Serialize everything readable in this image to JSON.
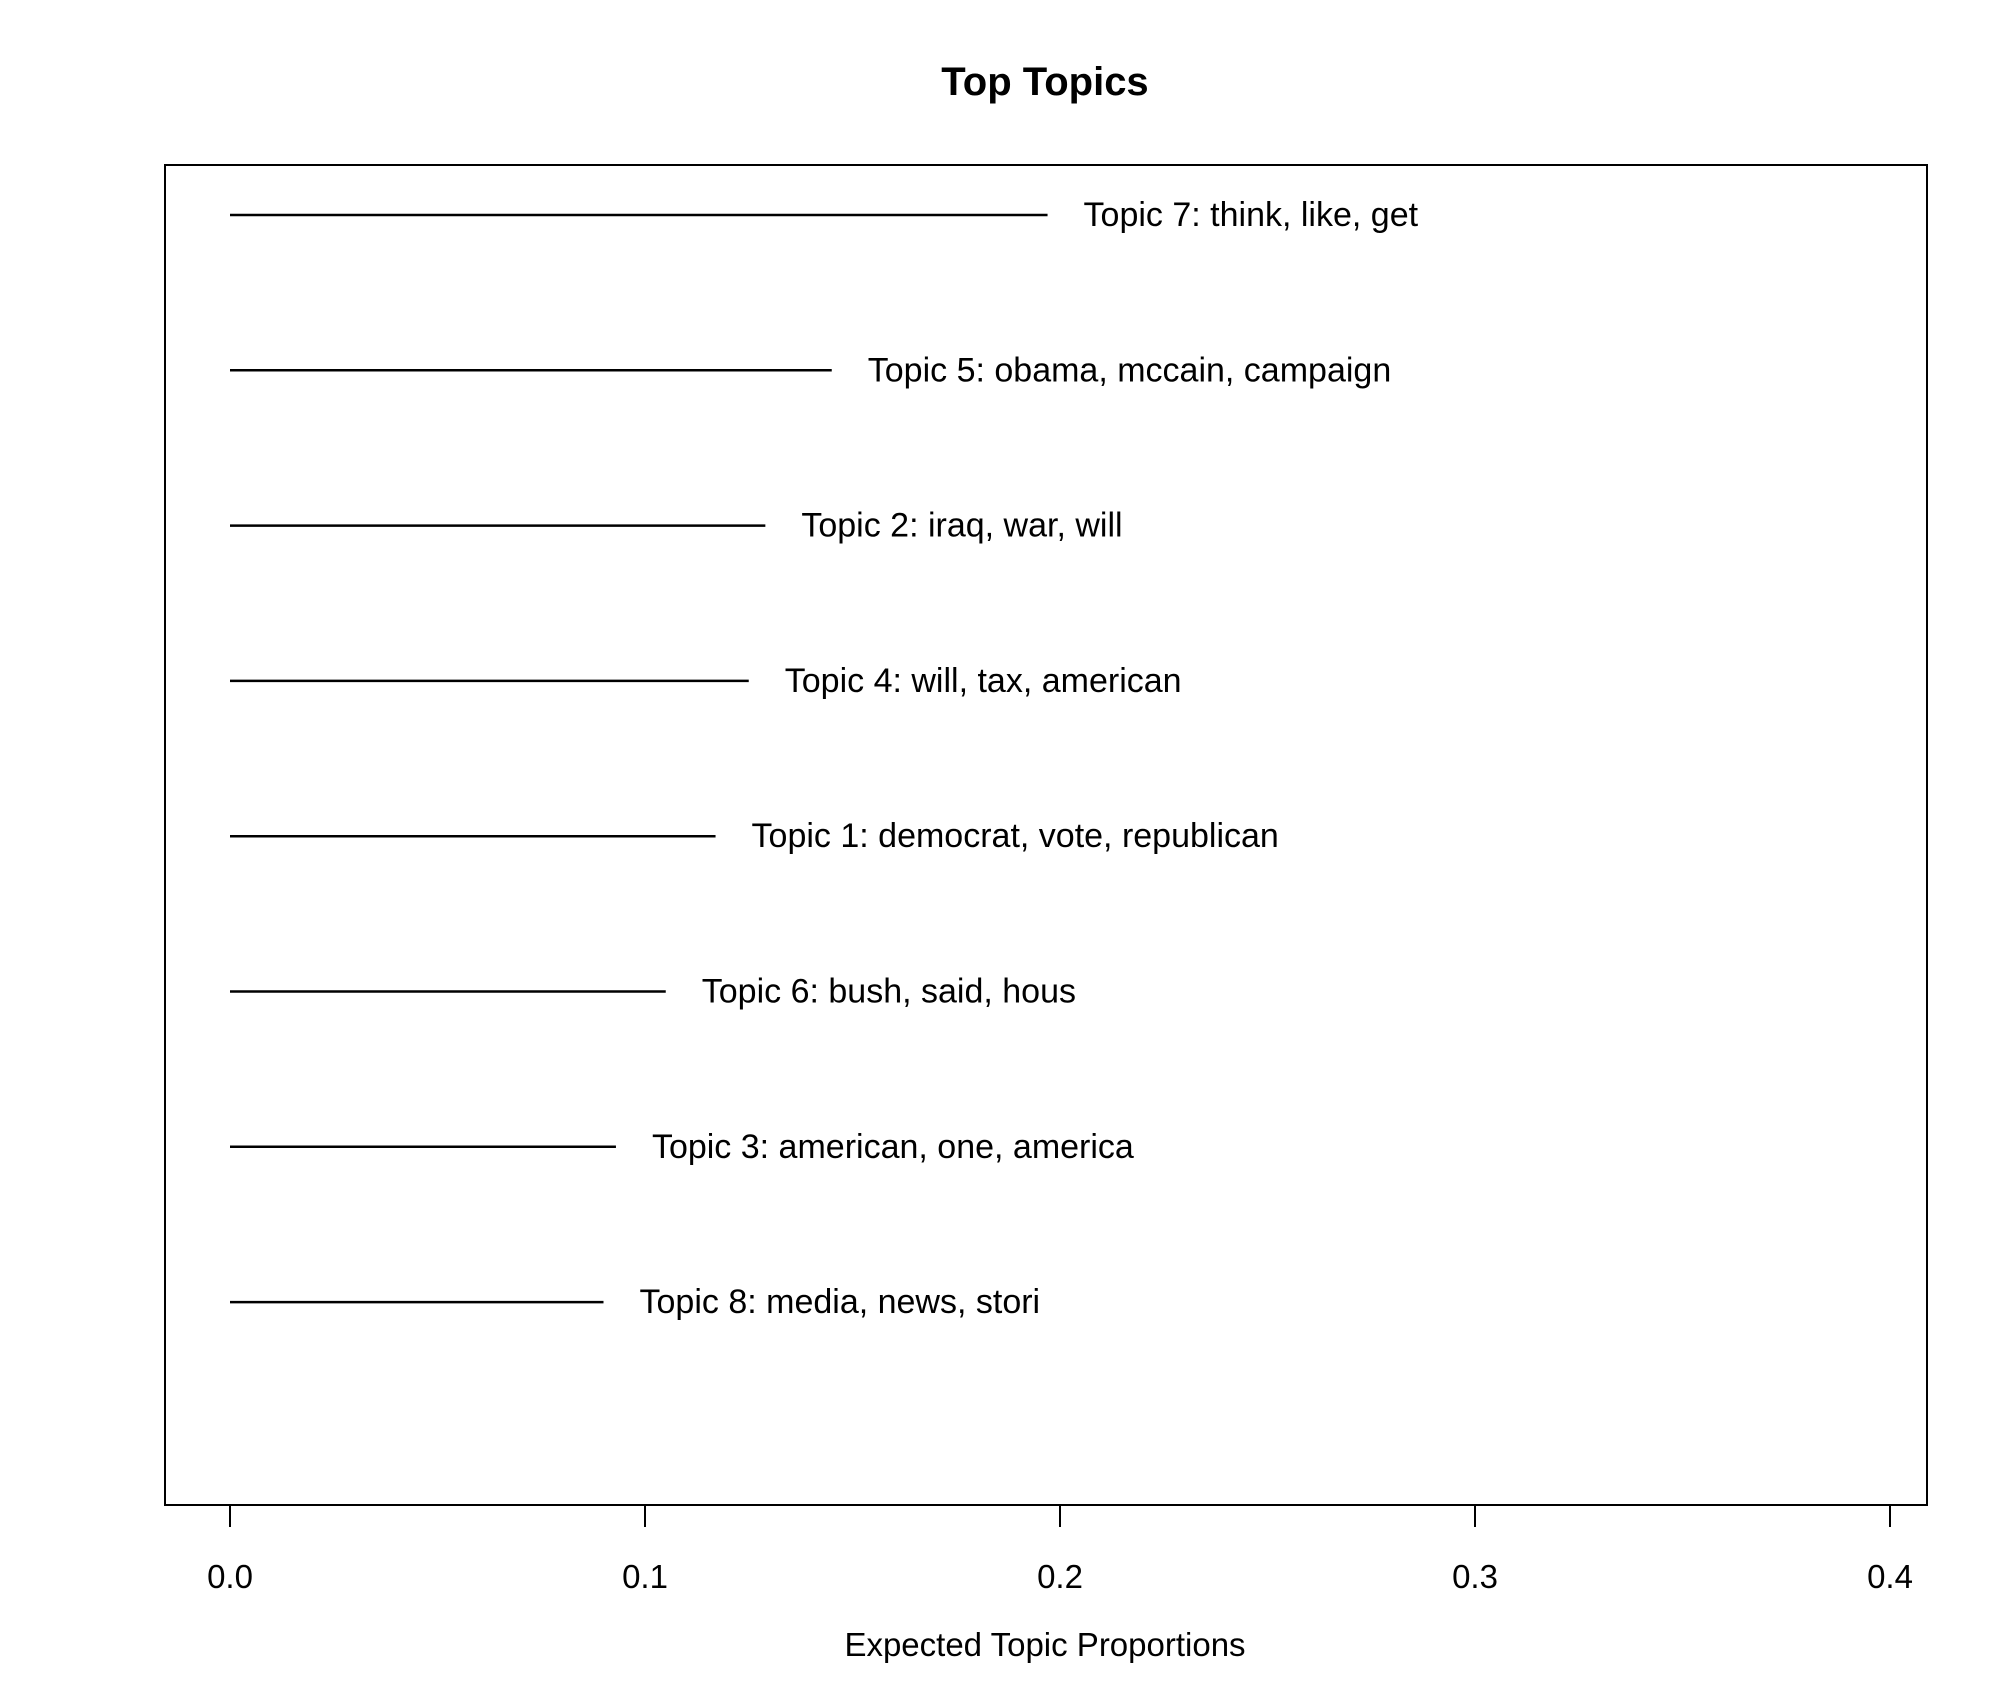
{
  "chart_data": {
    "type": "bar",
    "orientation": "horizontal",
    "title": "Top Topics",
    "xlabel": "Expected Topic Proportions",
    "ylabel": "",
    "xlim": [
      0.0,
      0.4
    ],
    "x_ticks": [
      "0.0",
      "0.1",
      "0.2",
      "0.3",
      "0.4"
    ],
    "grid": false,
    "legend": "none",
    "bar_color": "#000000",
    "categories": [
      "Topic 7: think, like, get",
      "Topic 5: obama, mccain, campaign",
      "Topic 2: iraq, war, will",
      "Topic 4: will, tax, american",
      "Topic 1: democrat, vote, republican",
      "Topic 6: bush, said, hous",
      "Topic 3: american, one, america",
      "Topic 8: media, news, stori"
    ],
    "values": [
      0.197,
      0.145,
      0.129,
      0.125,
      0.117,
      0.105,
      0.093,
      0.09
    ]
  }
}
